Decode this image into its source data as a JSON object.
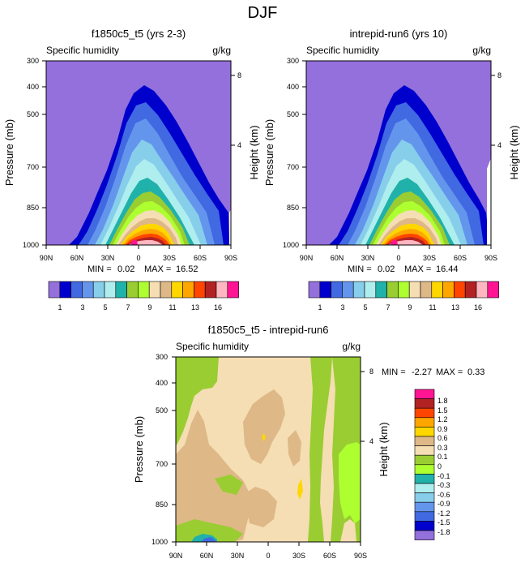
{
  "figure_title": "DJF",
  "chart_data": [
    {
      "type": "contour",
      "title": "f1850c5_t5 (yrs 2-3)",
      "variable": "Specific humidity",
      "units": "g/kg",
      "ylabel": "Pressure (mb)",
      "ylabel_right": "Height (km)",
      "x_ticks": [
        "90N",
        "60N",
        "30N",
        "0",
        "30S",
        "60S",
        "90S"
      ],
      "y_ticks": [
        "300",
        "400",
        "500",
        "700",
        "850",
        "1000"
      ],
      "y_ticks_right": [
        "8",
        "4"
      ],
      "ylim": [
        1000,
        300
      ],
      "min_label": "MIN =",
      "min": "0.02",
      "max_label": "MAX =",
      "max": "16.52",
      "contour_levels": [
        1,
        2,
        3,
        4,
        5,
        6,
        7,
        8,
        9,
        10,
        11,
        12,
        13,
        14,
        16
      ],
      "colorbar_labels": [
        "1",
        "3",
        "5",
        "7",
        "9",
        "11",
        "13",
        "16"
      ]
    },
    {
      "type": "contour",
      "title": "intrepid-run6 (yrs 10)",
      "variable": "Specific humidity",
      "units": "g/kg",
      "ylabel": "Pressure (mb)",
      "ylabel_right": "Height (km)",
      "x_ticks": [
        "90N",
        "60N",
        "30N",
        "0",
        "30S",
        "60S",
        "90S"
      ],
      "y_ticks": [
        "300",
        "400",
        "500",
        "700",
        "850",
        "1000"
      ],
      "y_ticks_right": [
        "8",
        "4"
      ],
      "ylim": [
        1000,
        300
      ],
      "min_label": "MIN =",
      "min": "0.02",
      "max_label": "MAX =",
      "max": "16.44",
      "contour_levels": [
        1,
        2,
        3,
        4,
        5,
        6,
        7,
        8,
        9,
        10,
        11,
        12,
        13,
        14,
        16
      ],
      "colorbar_labels": [
        "1",
        "3",
        "5",
        "7",
        "9",
        "11",
        "13",
        "16"
      ]
    },
    {
      "type": "contour",
      "title": "f1850c5_t5 - intrepid-run6",
      "variable": "Specific humidity",
      "units": "g/kg",
      "ylabel": "Pressure (mb)",
      "ylabel_right": "Height (km)",
      "x_ticks": [
        "90N",
        "60N",
        "30N",
        "0",
        "30S",
        "60S",
        "90S"
      ],
      "y_ticks": [
        "300",
        "400",
        "500",
        "700",
        "850",
        "1000"
      ],
      "y_ticks_right": [
        "8",
        "4"
      ],
      "ylim": [
        1000,
        300
      ],
      "min_label": "MIN =",
      "min": "-2.27",
      "max_label": "MAX =",
      "max": "0.33",
      "colorbar_labels": [
        "1.8",
        "1.5",
        "1.2",
        "0.9",
        "0.6",
        "0.3",
        "0.1",
        "0",
        "-0.1",
        "-0.3",
        "-0.6",
        "-0.9",
        "-1.2",
        "-1.5",
        "-1.8"
      ]
    }
  ],
  "colors": {
    "abs_levels": [
      "#9370db",
      "#0000cd",
      "#4169e1",
      "#6495ed",
      "#87ceeb",
      "#afeeee",
      "#20b2aa",
      "#9acd32",
      "#adff2f",
      "#f5deb3",
      "#deb887",
      "#ffd700",
      "#ffa500",
      "#ff4500",
      "#b22222",
      "#ffb6c1",
      "#ff1493"
    ],
    "diff_levels": [
      "#ff1493",
      "#b22222",
      "#ff4500",
      "#ffa500",
      "#ffd700",
      "#deb887",
      "#f5deb3",
      "#9acd32",
      "#adff2f",
      "#20b2aa",
      "#afeeee",
      "#87ceeb",
      "#6495ed",
      "#4169e1",
      "#0000cd",
      "#9370db"
    ]
  }
}
